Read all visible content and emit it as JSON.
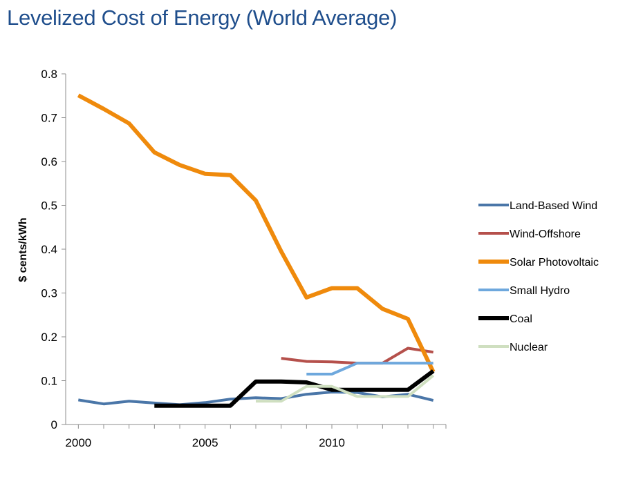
{
  "page": {
    "title": "Levelized Cost of Energy (World Average)"
  },
  "chart_data": {
    "type": "line",
    "title": "Levelized Cost of Energy (World Average)",
    "xlabel": "",
    "ylabel": "$ cents/kWh",
    "xlim": [
      1999.5,
      2014.5
    ],
    "ylim": [
      0,
      0.8
    ],
    "x_ticks": [
      2000,
      2005,
      2010
    ],
    "y_ticks": [
      0,
      0.1,
      0.2,
      0.3,
      0.4,
      0.5,
      0.6,
      0.7,
      0.8
    ],
    "grid": false,
    "legend_position": "right",
    "series": [
      {
        "name": "Land-Based Wind",
        "color": "#4a76a8",
        "width": 4,
        "x": [
          2000,
          2001,
          2002,
          2003,
          2004,
          2005,
          2006,
          2007,
          2008,
          2009,
          2010,
          2011,
          2012,
          2013,
          2014
        ],
        "values": [
          0.056,
          0.047,
          0.053,
          0.049,
          0.045,
          0.05,
          0.058,
          0.061,
          0.059,
          0.069,
          0.074,
          0.073,
          0.063,
          0.069,
          0.055
        ]
      },
      {
        "name": "Wind-Offshore",
        "color": "#b5504b",
        "width": 4,
        "x": [
          2008,
          2009,
          2010,
          2011,
          2012,
          2013,
          2014
        ],
        "values": [
          0.151,
          0.144,
          0.143,
          0.14,
          0.14,
          0.174,
          0.165
        ]
      },
      {
        "name": "Solar Photovoltaic",
        "color": "#ef8a0c",
        "width": 6,
        "x": [
          2000,
          2001,
          2002,
          2003,
          2004,
          2005,
          2006,
          2007,
          2008,
          2009,
          2010,
          2011,
          2012,
          2013,
          2014
        ],
        "values": [
          0.751,
          0.72,
          0.687,
          0.621,
          0.592,
          0.572,
          0.569,
          0.511,
          0.395,
          0.29,
          0.311,
          0.311,
          0.264,
          0.241,
          0.12
        ]
      },
      {
        "name": "Small Hydro",
        "color": "#6ea8dd",
        "width": 4,
        "x": [
          2009,
          2010,
          2011,
          2012,
          2013,
          2014
        ],
        "values": [
          0.115,
          0.115,
          0.14,
          0.14,
          0.14,
          0.14
        ]
      },
      {
        "name": "Coal",
        "color": "#000000",
        "width": 6,
        "x": [
          2003,
          2004,
          2005,
          2006,
          2007,
          2008,
          2009,
          2010,
          2011,
          2012,
          2013,
          2014
        ],
        "values": [
          0.043,
          0.043,
          0.043,
          0.043,
          0.098,
          0.098,
          0.096,
          0.079,
          0.079,
          0.079,
          0.079,
          0.122
        ]
      },
      {
        "name": "Nuclear",
        "color": "#cfdfc0",
        "width": 4,
        "x": [
          2007,
          2008,
          2009,
          2010,
          2011,
          2012,
          2013,
          2014
        ],
        "values": [
          0.053,
          0.053,
          0.087,
          0.087,
          0.064,
          0.064,
          0.064,
          0.112
        ]
      }
    ]
  }
}
